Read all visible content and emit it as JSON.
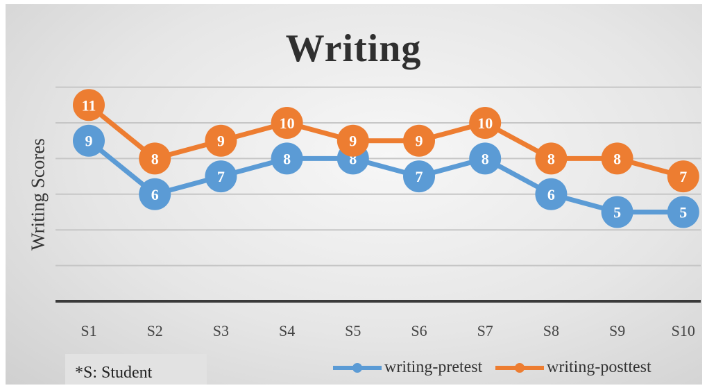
{
  "chart_data": {
    "type": "line",
    "title": "Writing",
    "ylabel": "Writing Scores",
    "xlabel": "",
    "categories": [
      "S1",
      "S2",
      "S3",
      "S4",
      "S5",
      "S6",
      "S7",
      "S8",
      "S9",
      "S10"
    ],
    "ylim": [
      0,
      12
    ],
    "grid": true,
    "legend_placement": "bottom-right",
    "series": [
      {
        "name": "writing-pretest",
        "values": [
          9,
          6,
          7,
          8,
          8,
          7,
          8,
          6,
          5,
          5
        ],
        "color": "#5b9bd5"
      },
      {
        "name": "writing-posttest",
        "values": [
          11,
          8,
          9,
          10,
          9,
          9,
          10,
          8,
          8,
          7
        ],
        "color": "#ed7d31"
      }
    ],
    "note": "*S: Student"
  }
}
